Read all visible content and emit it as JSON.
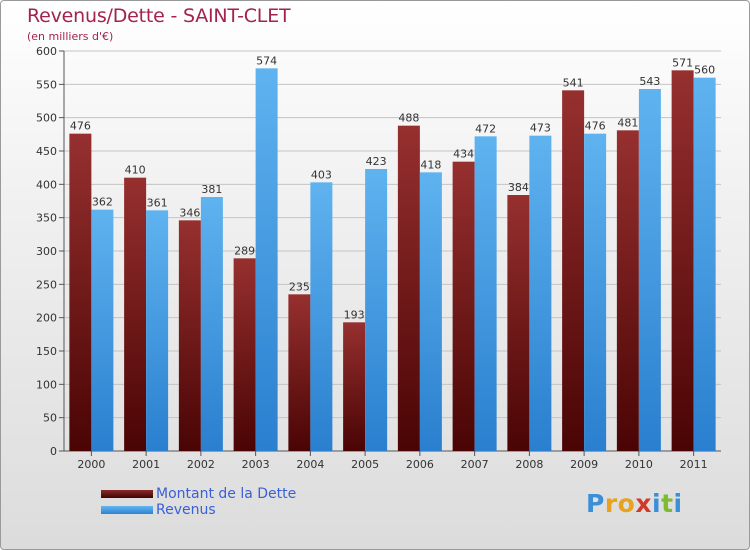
{
  "title": "Revenus/Dette - SAINT-CLET",
  "subtitle": "(en milliers d'€)",
  "colors": {
    "dette": "#7a1c1c",
    "revenus": "#3d9be6",
    "title": "#a4234a",
    "legend_text": "#3b5fd6"
  },
  "chart_data": {
    "type": "bar",
    "title": "Revenus/Dette - SAINT-CLET",
    "subtitle": "(en milliers d'€)",
    "categories": [
      "2000",
      "2001",
      "2002",
      "2003",
      "2004",
      "2005",
      "2006",
      "2007",
      "2008",
      "2009",
      "2010",
      "2011"
    ],
    "series": [
      {
        "name": "Montant de la Dette",
        "values": [
          476,
          410,
          346,
          289,
          235,
          193,
          488,
          434,
          384,
          541,
          481,
          571
        ]
      },
      {
        "name": "Revenus",
        "values": [
          362,
          361,
          381,
          574,
          403,
          423,
          418,
          472,
          473,
          476,
          543,
          560
        ]
      }
    ],
    "ylim": [
      0,
      600
    ],
    "yticks": [
      0,
      50,
      100,
      150,
      200,
      250,
      300,
      350,
      400,
      450,
      500,
      550,
      600
    ],
    "grid": true,
    "legend_position": "bottom-left"
  },
  "legend": {
    "dette_label": "Montant de la Dette",
    "revenus_label": "Revenus"
  },
  "logo": {
    "letters": [
      "P",
      "r",
      "o",
      "x",
      "i",
      "t",
      "i"
    ],
    "colors": [
      "#3a8fd8",
      "#e8a21d",
      "#e8a21d",
      "#d03a2a",
      "#3a8fd8",
      "#7cbc2e",
      "#3a8fd8"
    ]
  }
}
